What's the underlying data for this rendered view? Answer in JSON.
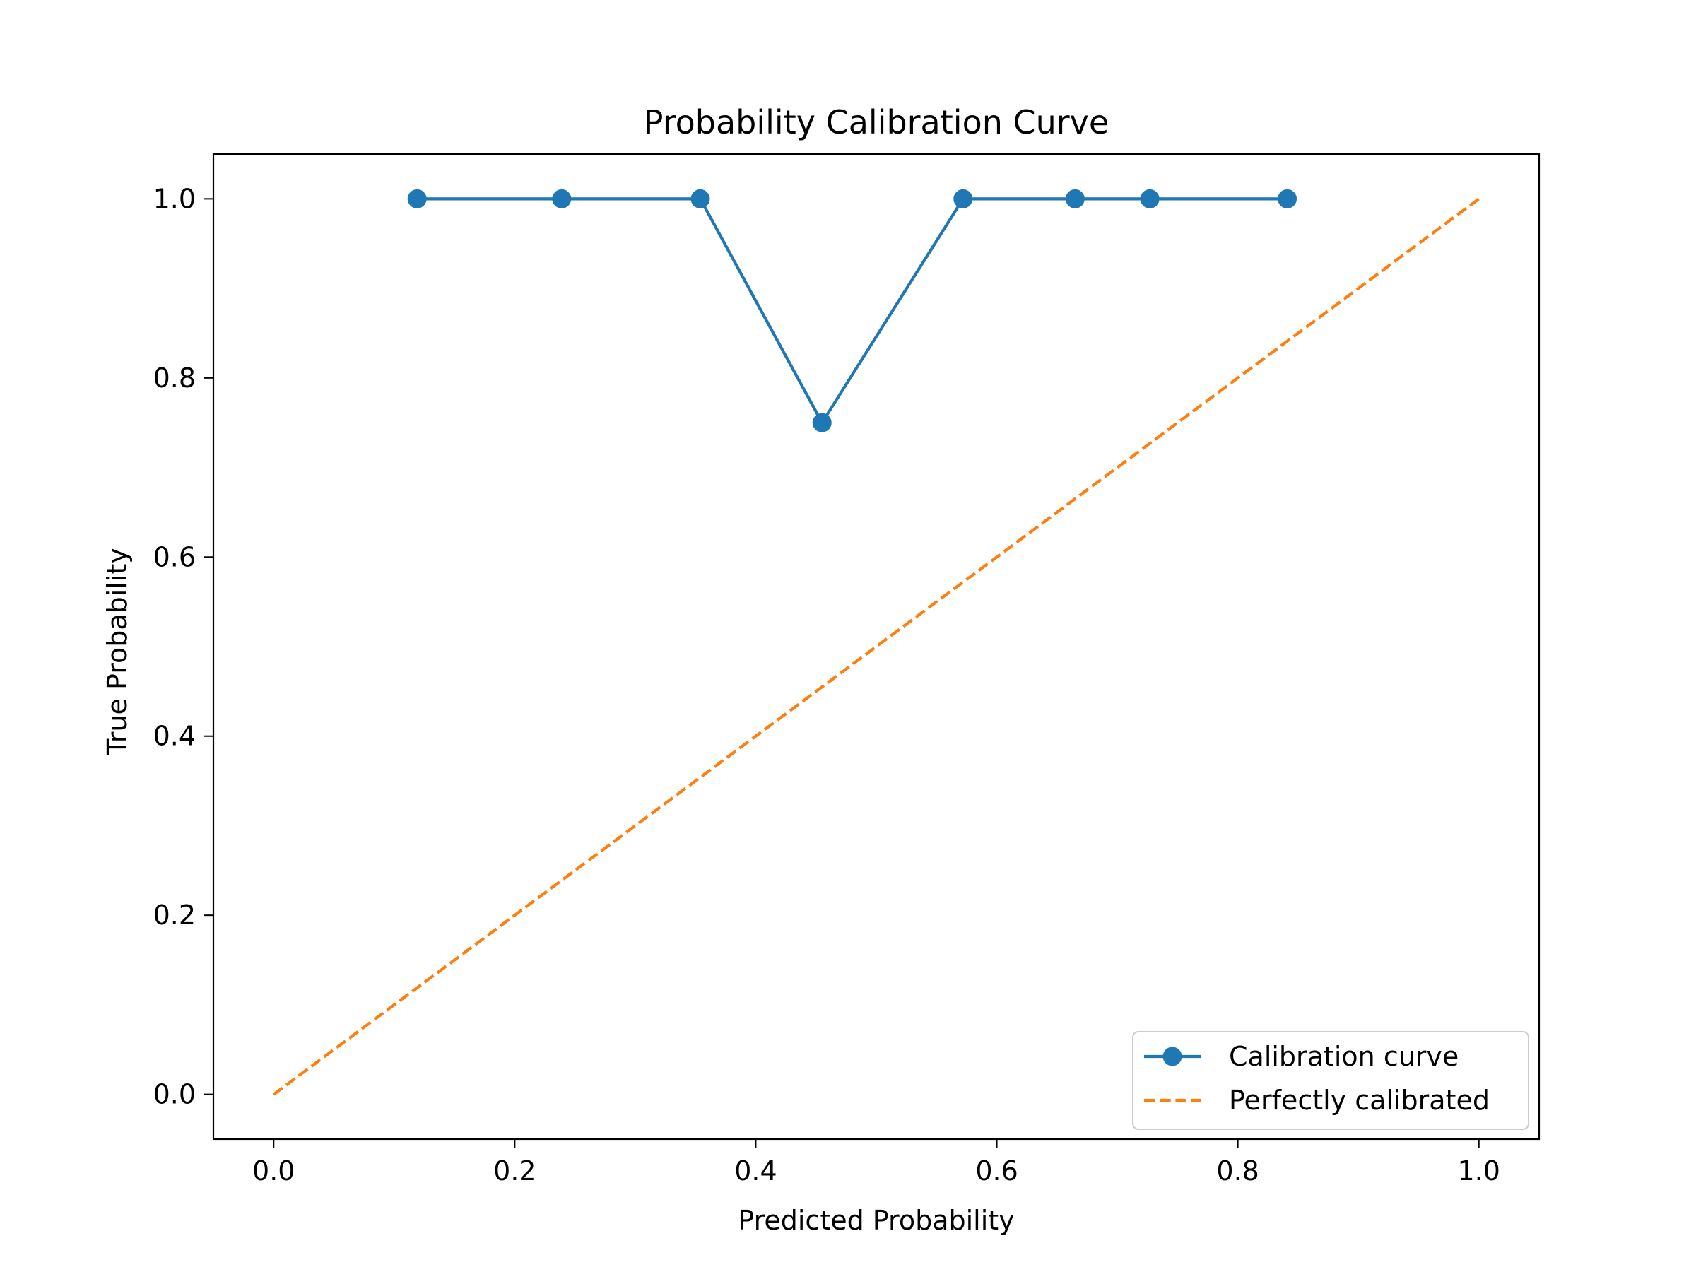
{
  "chart_data": {
    "type": "line",
    "title": "Probability Calibration Curve",
    "xlabel": "Predicted Probability",
    "ylabel": "True Probability",
    "xlim": [
      -0.05,
      1.05
    ],
    "ylim": [
      -0.05,
      1.05
    ],
    "xticks": [
      "0.0",
      "0.2",
      "0.4",
      "0.6",
      "0.8",
      "1.0"
    ],
    "yticks": [
      "0.0",
      "0.2",
      "0.4",
      "0.6",
      "0.8",
      "1.0"
    ],
    "grid": false,
    "legend_position": "lower-right",
    "series": [
      {
        "name": "Calibration curve",
        "style": "solid-with-markers",
        "color": "#1f77b4",
        "x": [
          0.119,
          0.239,
          0.354,
          0.455,
          0.572,
          0.665,
          0.727,
          0.841
        ],
        "y": [
          1.0,
          1.0,
          1.0,
          0.75,
          1.0,
          1.0,
          1.0,
          1.0
        ]
      },
      {
        "name": "Perfectly calibrated",
        "style": "dashed",
        "color": "#ff7f0e",
        "x": [
          0.0,
          1.0
        ],
        "y": [
          0.0,
          1.0
        ]
      }
    ]
  }
}
